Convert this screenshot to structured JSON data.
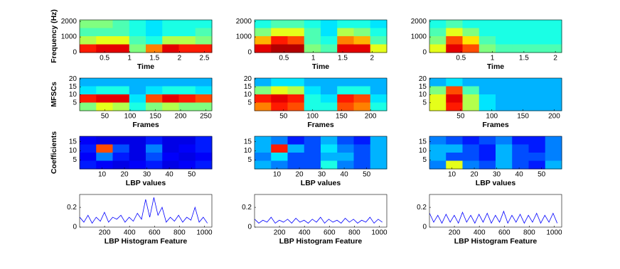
{
  "chart_data": [
    {
      "type": "heatmap",
      "xlabel": "Time",
      "ylabel": "Frequency (Hz)",
      "xlim": [
        0,
        2.65
      ],
      "xticks": [
        0.5,
        1,
        1.5,
        2,
        2.5
      ],
      "ylim": [
        0,
        2100
      ],
      "yticks": [
        0,
        1000,
        2000
      ],
      "z": [
        [
          0.5,
          0.5,
          0.45,
          0.4,
          0.35,
          0.4,
          0.4,
          0.4
        ],
        [
          0.45,
          0.45,
          0.45,
          0.4,
          0.35,
          0.4,
          0.4,
          0.45
        ],
        [
          0.55,
          0.6,
          0.6,
          0.45,
          0.4,
          0.55,
          0.55,
          0.5
        ],
        [
          0.85,
          0.9,
          0.9,
          0.5,
          0.75,
          0.9,
          0.85,
          0.85
        ]
      ]
    },
    {
      "type": "heatmap",
      "xlabel": "Time",
      "xlim": [
        0,
        2.25
      ],
      "xticks": [
        0.5,
        1,
        1.5,
        2
      ],
      "ylim": [
        0,
        2100
      ],
      "yticks": [
        0,
        1000,
        2000
      ],
      "z": [
        [
          0.4,
          0.45,
          0.45,
          0.4,
          0.35,
          0.4,
          0.4,
          0.35
        ],
        [
          0.5,
          0.6,
          0.6,
          0.45,
          0.35,
          0.55,
          0.5,
          0.4
        ],
        [
          0.7,
          0.85,
          0.8,
          0.45,
          0.4,
          0.75,
          0.7,
          0.45
        ],
        [
          0.9,
          0.95,
          0.95,
          0.5,
          0.45,
          0.9,
          0.9,
          0.6
        ]
      ]
    },
    {
      "type": "heatmap",
      "xlabel": "Time",
      "xlim": [
        0,
        2.1
      ],
      "xticks": [
        0.5,
        1,
        1.5,
        2
      ],
      "ylim": [
        0,
        2100
      ],
      "yticks": [
        0,
        1000,
        2000
      ],
      "z": [
        [
          0.4,
          0.45,
          0.4,
          0.4,
          0.4,
          0.4,
          0.4,
          0.4
        ],
        [
          0.45,
          0.6,
          0.5,
          0.4,
          0.4,
          0.4,
          0.4,
          0.4
        ],
        [
          0.5,
          0.8,
          0.65,
          0.45,
          0.4,
          0.4,
          0.4,
          0.4
        ],
        [
          0.6,
          0.9,
          0.8,
          0.5,
          0.45,
          0.45,
          0.45,
          0.45
        ]
      ]
    },
    {
      "type": "heatmap",
      "xlabel": "Frames",
      "ylabel": "MFSCs",
      "xlim": [
        0,
        262
      ],
      "xticks": [
        50,
        100,
        150,
        200,
        250
      ],
      "ylim": [
        0,
        20.5
      ],
      "yticks": [
        5,
        10,
        15,
        20
      ],
      "z": [
        [
          0.3,
          0.3,
          0.3,
          0.3,
          0.3,
          0.3,
          0.3,
          0.3
        ],
        [
          0.35,
          0.4,
          0.4,
          0.3,
          0.35,
          0.4,
          0.4,
          0.35
        ],
        [
          0.85,
          0.9,
          0.9,
          0.35,
          0.8,
          0.9,
          0.85,
          0.8
        ],
        [
          0.5,
          0.6,
          0.55,
          0.4,
          0.5,
          0.55,
          0.5,
          0.5
        ]
      ]
    },
    {
      "type": "heatmap",
      "xlabel": "Frames",
      "xlim": [
        0,
        228
      ],
      "xticks": [
        50,
        100,
        150,
        200
      ],
      "ylim": [
        0,
        20.5
      ],
      "yticks": [
        5,
        10,
        15,
        20
      ],
      "z": [
        [
          0.3,
          0.35,
          0.35,
          0.3,
          0.3,
          0.3,
          0.3,
          0.3
        ],
        [
          0.5,
          0.6,
          0.55,
          0.35,
          0.3,
          0.4,
          0.4,
          0.3
        ],
        [
          0.85,
          0.9,
          0.85,
          0.4,
          0.35,
          0.85,
          0.8,
          0.35
        ],
        [
          0.75,
          0.85,
          0.8,
          0.4,
          0.4,
          0.8,
          0.75,
          0.4
        ]
      ]
    },
    {
      "type": "heatmap",
      "xlabel": "Frames",
      "xlim": [
        0,
        212
      ],
      "xticks": [
        50,
        100,
        150,
        200
      ],
      "ylim": [
        0,
        20.5
      ],
      "yticks": [
        5,
        10,
        15,
        20
      ],
      "z": [
        [
          0.3,
          0.35,
          0.3,
          0.3,
          0.3,
          0.3,
          0.3,
          0.3
        ],
        [
          0.5,
          0.8,
          0.45,
          0.3,
          0.3,
          0.3,
          0.3,
          0.3
        ],
        [
          0.6,
          0.9,
          0.55,
          0.35,
          0.3,
          0.3,
          0.3,
          0.3
        ],
        [
          0.6,
          0.85,
          0.55,
          0.35,
          0.3,
          0.3,
          0.3,
          0.3
        ]
      ]
    },
    {
      "type": "heatmap",
      "xlabel": "LBP values",
      "ylabel": "Coefficients",
      "xlim": [
        0,
        59
      ],
      "xticks": [
        10,
        20,
        30,
        40,
        50
      ],
      "ylim": [
        0,
        18
      ],
      "yticks": [
        5,
        10,
        15
      ],
      "z": [
        [
          0.12,
          0.1,
          0.1,
          0.1,
          0.15,
          0.1,
          0.1,
          0.15
        ],
        [
          0.15,
          0.8,
          0.2,
          0.1,
          0.25,
          0.1,
          0.12,
          0.15
        ],
        [
          0.12,
          0.25,
          0.15,
          0.1,
          0.2,
          0.12,
          0.1,
          0.12
        ],
        [
          0.15,
          0.12,
          0.1,
          0.12,
          0.15,
          0.1,
          0.12,
          0.15
        ]
      ]
    },
    {
      "type": "heatmap",
      "xlabel": "LBP values",
      "xlim": [
        0,
        59
      ],
      "xticks": [
        10,
        20,
        30,
        40,
        50
      ],
      "ylim": [
        0,
        18
      ],
      "yticks": [
        5,
        10,
        15
      ],
      "z": [
        [
          0.3,
          0.25,
          0.15,
          0.2,
          0.3,
          0.2,
          0.15,
          0.3
        ],
        [
          0.3,
          0.85,
          0.3,
          0.2,
          0.35,
          0.25,
          0.2,
          0.3
        ],
        [
          0.25,
          0.35,
          0.2,
          0.2,
          0.3,
          0.3,
          0.2,
          0.3
        ],
        [
          0.3,
          0.25,
          0.2,
          0.2,
          0.4,
          0.25,
          0.2,
          0.3
        ]
      ]
    },
    {
      "type": "heatmap",
      "xlabel": "LBP values",
      "xlim": [
        0,
        59
      ],
      "xticks": [
        10,
        20,
        30,
        40,
        50
      ],
      "ylim": [
        0,
        18
      ],
      "yticks": [
        5,
        10,
        15
      ],
      "z": [
        [
          0.25,
          0.2,
          0.15,
          0.2,
          0.25,
          0.15,
          0.15,
          0.25
        ],
        [
          0.3,
          0.3,
          0.2,
          0.15,
          0.3,
          0.2,
          0.15,
          0.25
        ],
        [
          0.3,
          0.2,
          0.2,
          0.15,
          0.3,
          0.2,
          0.2,
          0.25
        ],
        [
          0.25,
          0.6,
          0.25,
          0.2,
          0.3,
          0.2,
          0.15,
          0.3
        ]
      ]
    },
    {
      "type": "line",
      "xlabel": "LBP Histogram Feature",
      "color": "#0000ff",
      "xlim": [
        0,
        1060
      ],
      "xticks": [
        200,
        400,
        600,
        800,
        1000
      ],
      "ylim": [
        0,
        0.33
      ],
      "yticks": [
        0,
        0.2
      ],
      "x": [
        1,
        34,
        67,
        100,
        133,
        166,
        199,
        232,
        265,
        298,
        331,
        364,
        397,
        430,
        463,
        496,
        529,
        562,
        595,
        628,
        661,
        694,
        727,
        760,
        793,
        826,
        859,
        892,
        925,
        958,
        991,
        1024
      ],
      "values": [
        0.1,
        0.05,
        0.12,
        0.04,
        0.1,
        0.06,
        0.15,
        0.05,
        0.1,
        0.08,
        0.12,
        0.05,
        0.1,
        0.06,
        0.14,
        0.08,
        0.28,
        0.1,
        0.3,
        0.12,
        0.2,
        0.05,
        0.1,
        0.06,
        0.12,
        0.05,
        0.1,
        0.07,
        0.2,
        0.05,
        0.1,
        0.04
      ]
    },
    {
      "type": "line",
      "xlabel": "LBP Histogram Feature",
      "color": "#0000ff",
      "xlim": [
        0,
        1060
      ],
      "xticks": [
        200,
        400,
        600,
        800,
        1000
      ],
      "ylim": [
        0,
        0.33
      ],
      "yticks": [
        0,
        0.2
      ],
      "x": [
        1,
        34,
        67,
        100,
        133,
        166,
        199,
        232,
        265,
        298,
        331,
        364,
        397,
        430,
        463,
        496,
        529,
        562,
        595,
        628,
        661,
        694,
        727,
        760,
        793,
        826,
        859,
        892,
        925,
        958,
        991,
        1024
      ],
      "values": [
        0.08,
        0.04,
        0.07,
        0.05,
        0.1,
        0.04,
        0.07,
        0.05,
        0.08,
        0.04,
        0.09,
        0.05,
        0.07,
        0.04,
        0.08,
        0.05,
        0.1,
        0.04,
        0.08,
        0.05,
        0.07,
        0.04,
        0.09,
        0.05,
        0.08,
        0.04,
        0.07,
        0.05,
        0.1,
        0.04,
        0.08,
        0.05
      ]
    },
    {
      "type": "line",
      "xlabel": "LBP Histogram Feature",
      "color": "#0000ff",
      "xlim": [
        0,
        1060
      ],
      "xticks": [
        200,
        400,
        600,
        800,
        1000
      ],
      "ylim": [
        0,
        0.33
      ],
      "yticks": [
        0,
        0.2
      ],
      "x": [
        1,
        34,
        67,
        100,
        133,
        166,
        199,
        232,
        265,
        298,
        331,
        364,
        397,
        430,
        463,
        496,
        529,
        562,
        595,
        628,
        661,
        694,
        727,
        760,
        793,
        826,
        859,
        892,
        925,
        958,
        991,
        1024
      ],
      "values": [
        0.14,
        0.05,
        0.12,
        0.04,
        0.13,
        0.05,
        0.12,
        0.04,
        0.15,
        0.05,
        0.12,
        0.04,
        0.13,
        0.05,
        0.14,
        0.04,
        0.12,
        0.05,
        0.16,
        0.04,
        0.12,
        0.05,
        0.13,
        0.04,
        0.12,
        0.05,
        0.14,
        0.04,
        0.12,
        0.05,
        0.14,
        0.04
      ]
    }
  ]
}
